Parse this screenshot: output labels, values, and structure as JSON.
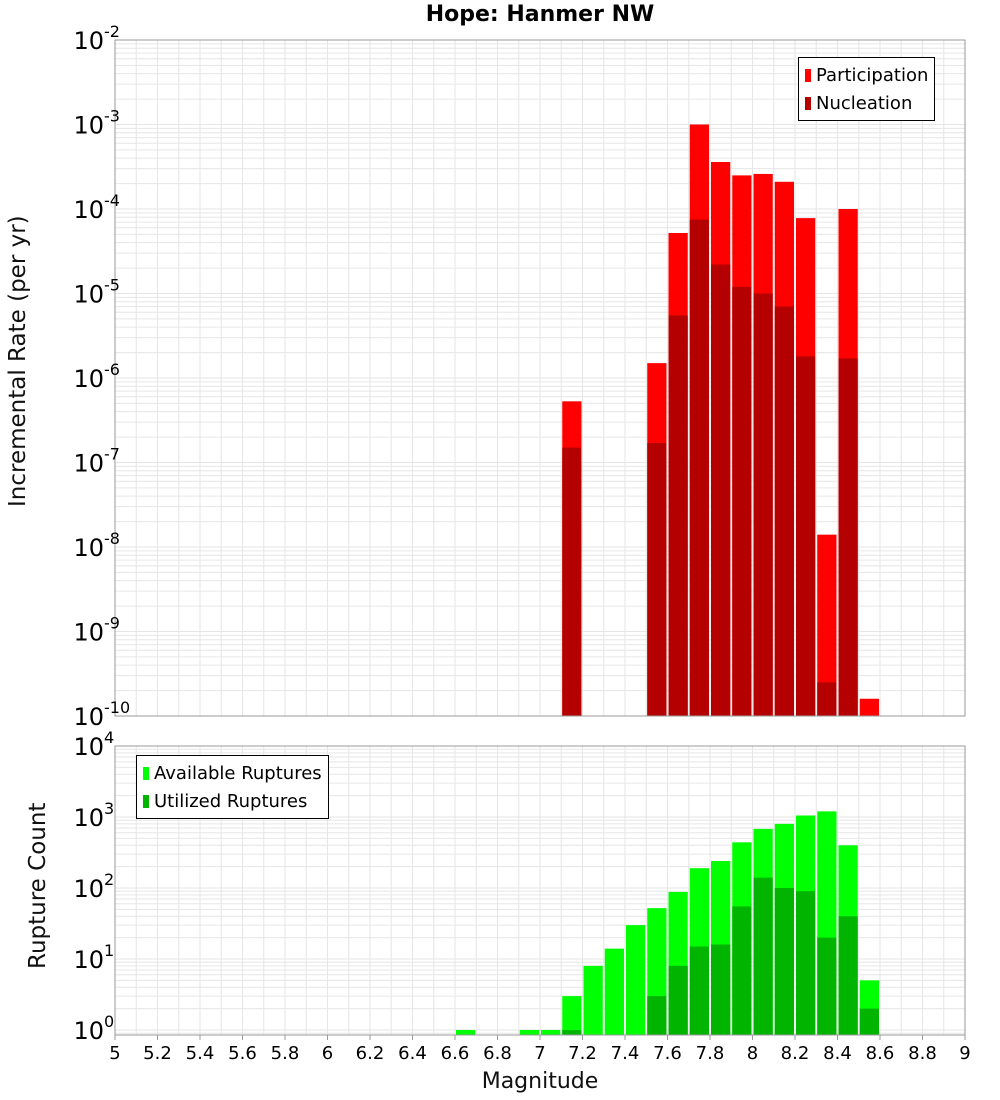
{
  "title": "Hope: Hanmer NW",
  "x_axis": {
    "label": "Magnitude",
    "ticks": [
      "5",
      "5.2",
      "5.4",
      "5.6",
      "5.8",
      "6",
      "6.2",
      "6.4",
      "6.6",
      "6.8",
      "7",
      "7.2",
      "7.4",
      "7.6",
      "7.8",
      "8",
      "8.2",
      "8.4",
      "8.6",
      "8.8",
      "9"
    ]
  },
  "colors": {
    "participation": "#ff0000",
    "nucleation": "#b40000",
    "available": "#00ff00",
    "utilized": "#00b400",
    "grid": "#e6e6e6"
  },
  "chart_data": [
    {
      "type": "bar",
      "title": "Hope: Hanmer NW",
      "xlabel": "Magnitude",
      "ylabel": "Incremental Rate (per yr)",
      "yscale": "log",
      "ylim": [
        1e-10,
        0.01
      ],
      "xlim": [
        5,
        9
      ],
      "y_tick_exponents": [
        -2,
        -3,
        -4,
        -5,
        -6,
        -7,
        -8,
        -9,
        -10
      ],
      "legend_position": "top-right",
      "x": [
        7.15,
        7.55,
        7.65,
        7.75,
        7.85,
        7.95,
        8.05,
        8.15,
        8.25,
        8.35,
        8.45,
        8.55
      ],
      "series": [
        {
          "name": "Participation",
          "values": [
            5.3e-07,
            1.5e-06,
            5.2e-05,
            0.001,
            0.00036,
            0.00025,
            0.00026,
            0.00021,
            7.8e-05,
            1.4e-08,
            0.0001,
            1.6e-10
          ]
        },
        {
          "name": "Nucleation",
          "values": [
            1.5e-07,
            1.7e-07,
            5.5e-06,
            7.5e-05,
            2.2e-05,
            1.2e-05,
            1e-05,
            7e-06,
            1.8e-06,
            2.5e-10,
            1.7e-06,
            null
          ]
        }
      ]
    },
    {
      "type": "bar",
      "xlabel": "Magnitude",
      "ylabel": "Rupture Count",
      "yscale": "log",
      "ylim": [
        0.85,
        10000
      ],
      "xlim": [
        5,
        9
      ],
      "y_tick_exponents": [
        4,
        3,
        2,
        1,
        0
      ],
      "legend_position": "top-left",
      "x": [
        6.65,
        6.95,
        7.05,
        7.15,
        7.25,
        7.35,
        7.45,
        7.55,
        7.65,
        7.75,
        7.85,
        7.95,
        8.05,
        8.15,
        8.25,
        8.35,
        8.45,
        8.55
      ],
      "series": [
        {
          "name": "Available Ruptures",
          "values": [
            1,
            1,
            1,
            3,
            8,
            14,
            30,
            52,
            88,
            190,
            240,
            440,
            680,
            800,
            1050,
            1200,
            400,
            5
          ]
        },
        {
          "name": "Utilized Ruptures",
          "values": [
            null,
            null,
            null,
            1,
            null,
            null,
            null,
            3,
            8,
            15,
            16,
            55,
            140,
            100,
            90,
            20,
            40,
            2
          ]
        }
      ]
    }
  ]
}
